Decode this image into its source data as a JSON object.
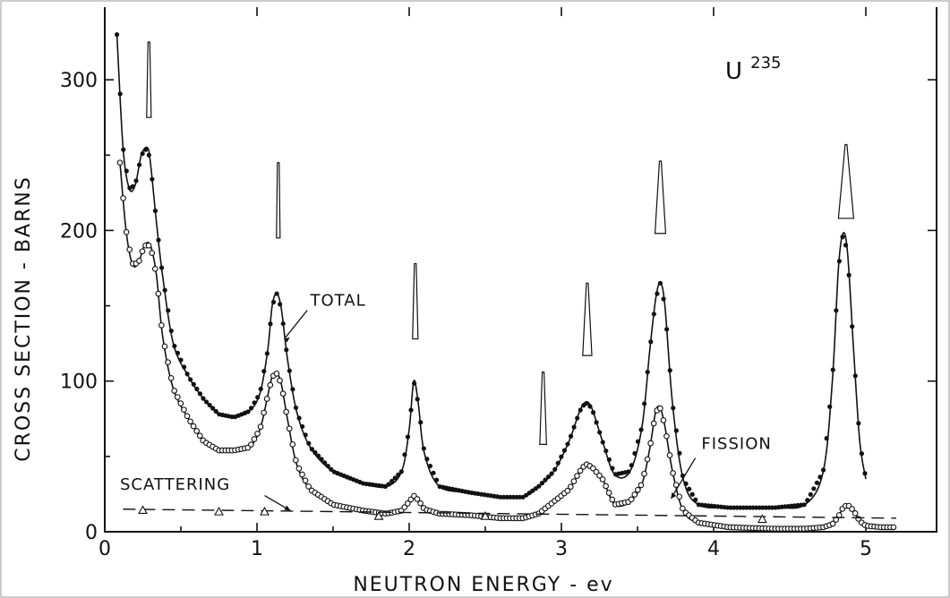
{
  "chart_data": {
    "type": "line",
    "title": "U^235",
    "title_main": "U",
    "title_sup": "235",
    "xlabel": "NEUTRON ENERGY - ev",
    "ylabel": "CROSS SECTION - BARNS",
    "xlim": [
      0,
      5.25
    ],
    "ylim": [
      0,
      345
    ],
    "x_ticks": [
      0,
      1,
      2,
      3,
      4,
      5
    ],
    "x_tick_labels": [
      "0",
      "1",
      "2",
      "3",
      "4",
      "5"
    ],
    "y_ticks": [
      0,
      100,
      200,
      300
    ],
    "y_tick_labels": [
      "0",
      "100",
      "200",
      "300"
    ],
    "grid": false,
    "series": [
      {
        "name": "TOTAL",
        "marker": "filled-circle",
        "line": "solid",
        "x": [
          0.08,
          0.12,
          0.16,
          0.2,
          0.24,
          0.28,
          0.3,
          0.34,
          0.38,
          0.45,
          0.55,
          0.65,
          0.75,
          0.85,
          0.95,
          1.02,
          1.07,
          1.1,
          1.13,
          1.16,
          1.2,
          1.26,
          1.35,
          1.5,
          1.7,
          1.85,
          1.95,
          2.0,
          2.03,
          2.06,
          2.1,
          2.2,
          2.4,
          2.6,
          2.75,
          2.85,
          2.95,
          3.05,
          3.12,
          3.16,
          3.2,
          3.27,
          3.35,
          3.45,
          3.53,
          3.58,
          3.62,
          3.65,
          3.68,
          3.73,
          3.8,
          3.9,
          4.1,
          4.4,
          4.6,
          4.72,
          4.78,
          4.82,
          4.85,
          4.88,
          4.92,
          4.96,
          5.0
        ],
        "y": [
          330,
          255,
          228,
          230,
          250,
          255,
          245,
          205,
          170,
          125,
          103,
          88,
          78,
          76,
          80,
          92,
          120,
          150,
          158,
          148,
          115,
          80,
          56,
          40,
          32,
          30,
          40,
          68,
          100,
          85,
          52,
          30,
          26,
          23,
          23,
          30,
          40,
          60,
          80,
          86,
          82,
          60,
          38,
          40,
          70,
          120,
          155,
          165,
          150,
          85,
          35,
          18,
          16,
          16,
          18,
          40,
          100,
          175,
          198,
          185,
          120,
          60,
          35
        ]
      },
      {
        "name": "FISSION",
        "marker": "open-circle",
        "line": "solid",
        "x": [
          0.1,
          0.14,
          0.18,
          0.22,
          0.26,
          0.3,
          0.34,
          0.38,
          0.45,
          0.55,
          0.65,
          0.75,
          0.85,
          0.95,
          1.02,
          1.07,
          1.1,
          1.13,
          1.16,
          1.2,
          1.26,
          1.35,
          1.5,
          1.7,
          1.85,
          1.95,
          2.0,
          2.03,
          2.06,
          2.1,
          2.2,
          2.4,
          2.6,
          2.75,
          2.85,
          2.95,
          3.05,
          3.12,
          3.16,
          3.2,
          3.27,
          3.35,
          3.45,
          3.53,
          3.58,
          3.62,
          3.65,
          3.68,
          3.73,
          3.8,
          3.9,
          4.1,
          4.4,
          4.6,
          4.72,
          4.78,
          4.82,
          4.85,
          4.88,
          4.92,
          4.96,
          5.0,
          5.1,
          5.2
        ],
        "y": [
          245,
          200,
          178,
          178,
          190,
          190,
          170,
          130,
          95,
          75,
          60,
          54,
          54,
          56,
          68,
          90,
          103,
          105,
          98,
          75,
          45,
          28,
          18,
          14,
          12,
          14,
          20,
          24,
          21,
          15,
          12,
          11,
          9,
          9,
          12,
          20,
          28,
          40,
          45,
          43,
          35,
          18,
          20,
          32,
          55,
          80,
          82,
          70,
          40,
          14,
          6,
          3,
          2,
          2,
          3,
          5,
          10,
          16,
          18,
          14,
          7,
          4,
          3,
          3
        ]
      },
      {
        "name": "SCATTERING",
        "marker": "open-triangle",
        "line": "dashed",
        "x": [
          0.25,
          0.75,
          1.05,
          1.8,
          2.5,
          4.32
        ],
        "y": [
          14,
          13,
          13,
          10,
          10,
          8
        ],
        "line_x": [
          0.12,
          5.2
        ],
        "line_y": [
          15,
          9
        ]
      }
    ],
    "annotations": [
      {
        "text": "TOTAL",
        "x": 1.35,
        "y": 150
      },
      {
        "text": "FISSION",
        "x": 3.92,
        "y": 55
      },
      {
        "text": "SCATTERING",
        "x": 0.1,
        "y": 28
      }
    ],
    "resonance_markers": [
      {
        "x": 0.29,
        "top": 325,
        "bottom": 275,
        "half_width": 0.015
      },
      {
        "x": 1.14,
        "top": 245,
        "bottom": 195,
        "half_width": 0.012
      },
      {
        "x": 2.04,
        "top": 178,
        "bottom": 128,
        "half_width": 0.018
      },
      {
        "x": 2.88,
        "top": 106,
        "bottom": 58,
        "half_width": 0.022
      },
      {
        "x": 3.17,
        "top": 165,
        "bottom": 117,
        "half_width": 0.03
      },
      {
        "x": 3.65,
        "top": 246,
        "bottom": 198,
        "half_width": 0.035
      },
      {
        "x": 4.87,
        "top": 257,
        "bottom": 208,
        "half_width": 0.05
      }
    ]
  }
}
